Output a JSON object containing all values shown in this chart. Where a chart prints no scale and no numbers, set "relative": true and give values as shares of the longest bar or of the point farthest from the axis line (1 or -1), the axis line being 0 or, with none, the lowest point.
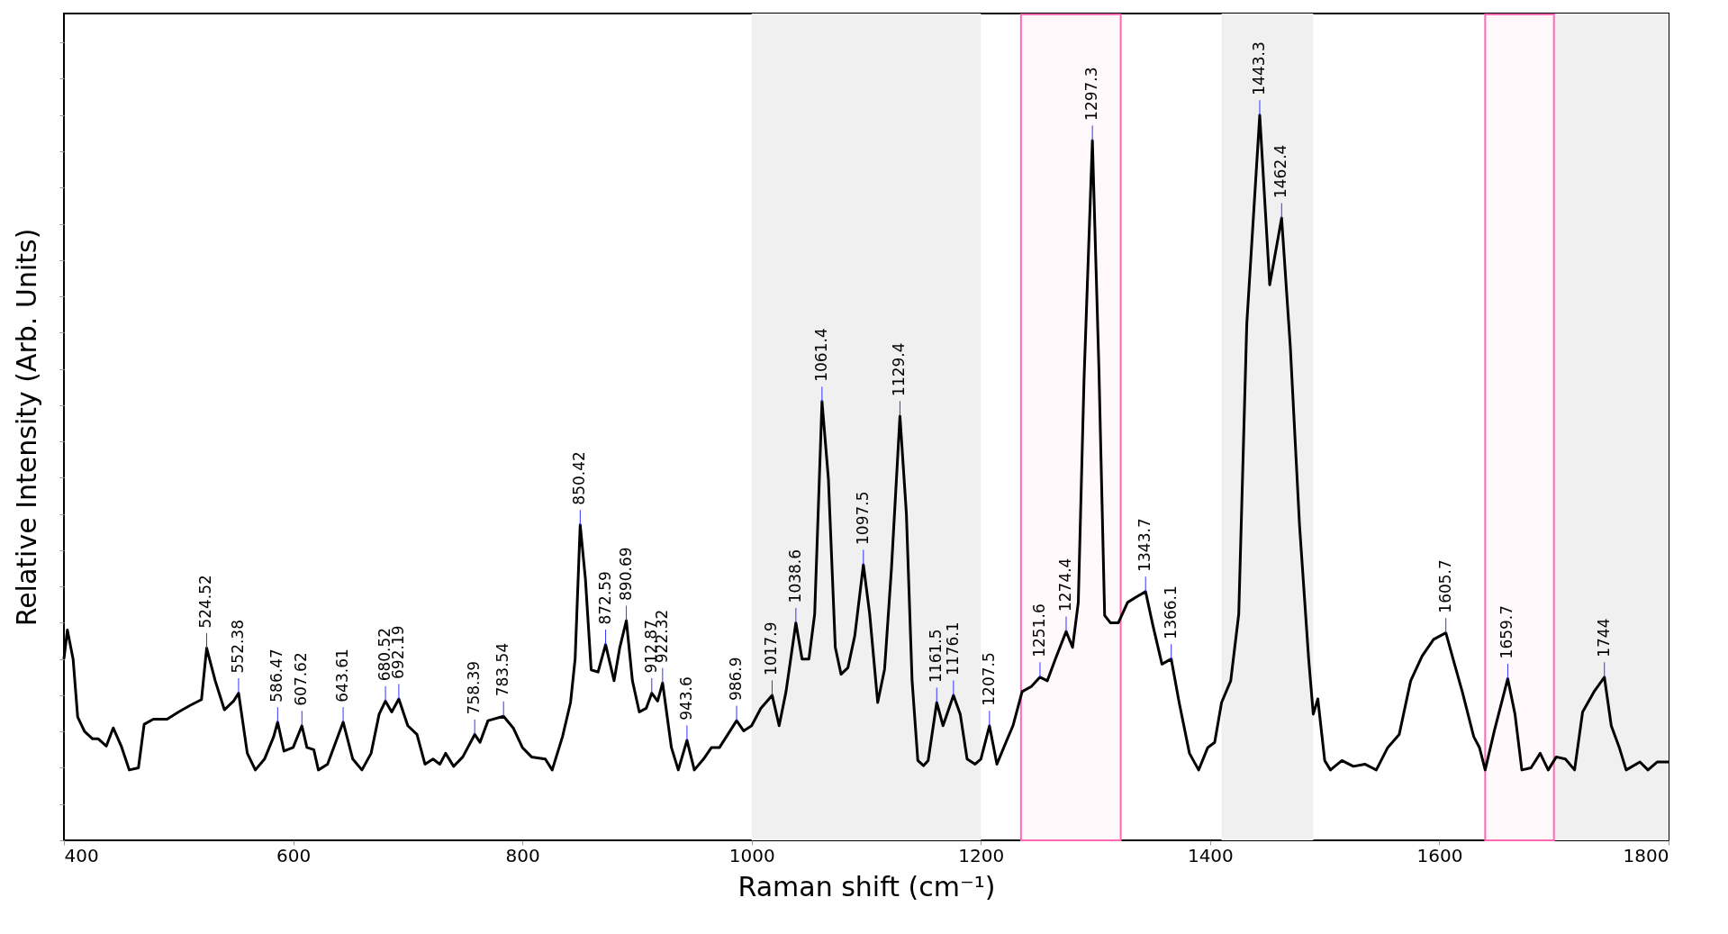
{
  "chart_data": {
    "type": "line",
    "relative": true,
    "xlabel": "Raman shift (cm⁻¹)",
    "ylabel": "Relative Intensity (Arb. Units)",
    "xlim": [
      400,
      1800
    ],
    "xticks": [
      400,
      600,
      800,
      1000,
      1200,
      1400,
      1600,
      1800
    ],
    "grid": false,
    "marker": "none",
    "line_style": "solid",
    "series": [
      {
        "color": "#000000",
        "x": [
          400,
          403,
          408,
          412,
          418,
          425,
          430,
          437,
          443,
          450,
          457,
          465,
          470,
          478,
          490,
          500,
          510,
          520,
          524.52,
          532,
          540,
          548,
          552.38,
          560,
          567,
          575,
          583,
          586.47,
          592,
          600,
          607.62,
          612,
          618,
          622,
          630,
          643.61,
          652,
          660,
          668,
          675,
          680.52,
          686,
          692.19,
          700,
          708,
          715,
          722,
          728,
          733,
          740,
          748,
          758.39,
          763,
          770,
          783.54,
          792,
          800,
          808,
          820,
          826,
          835,
          842,
          846,
          850.42,
          855,
          860,
          866,
          872.59,
          880,
          885,
          890.69,
          896,
          902,
          908,
          912.87,
          918,
          922.32,
          930,
          936,
          943.6,
          950,
          958,
          965,
          972,
          978,
          986.9,
          993,
          1000,
          1008,
          1017.9,
          1024,
          1030,
          1038.6,
          1044,
          1050,
          1055,
          1061.4,
          1067,
          1073,
          1078,
          1084,
          1090,
          1097.5,
          1103,
          1110,
          1116,
          1122,
          1129.4,
          1135,
          1140,
          1145,
          1150,
          1154,
          1161.5,
          1167,
          1176.1,
          1182,
          1188,
          1195,
          1200,
          1207.5,
          1214,
          1220,
          1228,
          1236,
          1244,
          1251.6,
          1258,
          1265,
          1274.4,
          1280,
          1285,
          1290,
          1297.3,
          1303,
          1308,
          1313,
          1320,
          1328,
          1335,
          1343.7,
          1350,
          1358,
          1366.1,
          1373,
          1382,
          1390,
          1398,
          1404,
          1410,
          1418,
          1425,
          1432,
          1443.3,
          1452,
          1462.4,
          1470,
          1478,
          1486,
          1490,
          1494,
          1500,
          1505,
          1515,
          1525,
          1535,
          1545,
          1555,
          1565,
          1575,
          1585,
          1595,
          1605.7,
          1612,
          1620,
          1630,
          1635,
          1640,
          1648,
          1659.7,
          1666,
          1672,
          1680,
          1688,
          1695,
          1702,
          1710,
          1718,
          1725,
          1735,
          1744,
          1750,
          1757,
          1763,
          1775,
          1782,
          1790,
          1800
        ],
        "values": [
          0.25,
          0.29,
          0.25,
          0.17,
          0.15,
          0.14,
          0.14,
          0.13,
          0.155,
          0.13,
          0.097,
          0.1,
          0.16,
          0.167,
          0.167,
          0.177,
          0.186,
          0.194,
          0.265,
          0.22,
          0.18,
          0.192,
          0.203,
          0.12,
          0.097,
          0.112,
          0.143,
          0.163,
          0.123,
          0.128,
          0.158,
          0.128,
          0.125,
          0.097,
          0.105,
          0.163,
          0.112,
          0.097,
          0.12,
          0.174,
          0.192,
          0.177,
          0.195,
          0.158,
          0.146,
          0.105,
          0.112,
          0.105,
          0.12,
          0.102,
          0.115,
          0.146,
          0.135,
          0.165,
          0.171,
          0.155,
          0.128,
          0.115,
          0.112,
          0.097,
          0.143,
          0.19,
          0.25,
          0.435,
          0.36,
          0.235,
          0.232,
          0.27,
          0.22,
          0.266,
          0.303,
          0.22,
          0.177,
          0.182,
          0.203,
          0.192,
          0.217,
          0.128,
          0.097,
          0.138,
          0.097,
          0.112,
          0.128,
          0.128,
          0.143,
          0.165,
          0.151,
          0.158,
          0.182,
          0.2,
          0.158,
          0.205,
          0.3,
          0.25,
          0.25,
          0.312,
          0.605,
          0.498,
          0.266,
          0.229,
          0.238,
          0.282,
          0.38,
          0.312,
          0.19,
          0.236,
          0.375,
          0.585,
          0.451,
          0.22,
          0.11,
          0.103,
          0.11,
          0.19,
          0.158,
          0.2,
          0.174,
          0.112,
          0.105,
          0.112,
          0.158,
          0.105,
          0.128,
          0.158,
          0.205,
          0.212,
          0.225,
          0.22,
          0.25,
          0.288,
          0.266,
          0.328,
          0.635,
          0.965,
          0.65,
          0.31,
          0.3,
          0.3,
          0.328,
          0.335,
          0.343,
          0.297,
          0.243,
          0.25,
          0.19,
          0.12,
          0.097,
          0.128,
          0.135,
          0.19,
          0.22,
          0.312,
          0.712,
          1.0,
          0.766,
          0.858,
          0.68,
          0.435,
          0.25,
          0.174,
          0.195,
          0.11,
          0.097,
          0.11,
          0.102,
          0.105,
          0.097,
          0.128,
          0.146,
          0.22,
          0.254,
          0.277,
          0.286,
          0.25,
          0.205,
          0.143,
          0.128,
          0.097,
          0.151,
          0.223,
          0.174,
          0.097,
          0.1,
          0.12,
          0.097,
          0.115,
          0.112,
          0.097,
          0.177,
          0.205,
          0.225,
          0.158,
          0.128,
          0.097,
          0.108,
          0.097,
          0.108,
          0.108
        ]
      }
    ],
    "bands": [
      {
        "axis": "x",
        "from": 1000,
        "to": 1200,
        "color": "#f0f0f0"
      },
      {
        "axis": "x",
        "from": 1410,
        "to": 1490,
        "color": "#f0f0f0"
      },
      {
        "axis": "x",
        "from": 1700,
        "to": 1800,
        "color": "#f0f0f0"
      },
      {
        "axis": "x",
        "from": 1235,
        "to": 1322,
        "color": "#ff69b4"
      },
      {
        "axis": "x",
        "from": 1640,
        "to": 1700,
        "color": "#ff69b4"
      }
    ],
    "annotations": [
      {
        "text": "524.52",
        "x": 524.52,
        "y": 0.265
      },
      {
        "text": "552.38",
        "x": 552.38,
        "y": 0.203
      },
      {
        "text": "586.47",
        "x": 586.47,
        "y": 0.163
      },
      {
        "text": "607.62",
        "x": 607.62,
        "y": 0.158
      },
      {
        "text": "643.61",
        "x": 643.61,
        "y": 0.163
      },
      {
        "text": "680.52",
        "x": 680.52,
        "y": 0.192
      },
      {
        "text": "692.19",
        "x": 692.19,
        "y": 0.195
      },
      {
        "text": "758.39",
        "x": 758.39,
        "y": 0.146
      },
      {
        "text": "783.54",
        "x": 783.54,
        "y": 0.171
      },
      {
        "text": "850.42",
        "x": 850.42,
        "y": 0.435
      },
      {
        "text": "872.59",
        "x": 872.59,
        "y": 0.27
      },
      {
        "text": "890.69",
        "x": 890.69,
        "y": 0.303
      },
      {
        "text": "912.87",
        "x": 912.87,
        "y": 0.203
      },
      {
        "text": "922.32",
        "x": 922.32,
        "y": 0.217
      },
      {
        "text": "943.6",
        "x": 943.6,
        "y": 0.138
      },
      {
        "text": "986.9",
        "x": 986.9,
        "y": 0.165
      },
      {
        "text": "1017.9",
        "x": 1017.9,
        "y": 0.2
      },
      {
        "text": "1038.6",
        "x": 1038.6,
        "y": 0.3
      },
      {
        "text": "1061.4",
        "x": 1061.4,
        "y": 0.605
      },
      {
        "text": "1097.5",
        "x": 1097.5,
        "y": 0.38
      },
      {
        "text": "1129.4",
        "x": 1129.4,
        "y": 0.585
      },
      {
        "text": "1161.5",
        "x": 1161.5,
        "y": 0.19
      },
      {
        "text": "1176.1",
        "x": 1176.1,
        "y": 0.2
      },
      {
        "text": "1207.5",
        "x": 1207.5,
        "y": 0.158
      },
      {
        "text": "1251.6",
        "x": 1251.6,
        "y": 0.225
      },
      {
        "text": "1274.4",
        "x": 1274.4,
        "y": 0.288
      },
      {
        "text": "1297.3",
        "x": 1297.3,
        "y": 0.965
      },
      {
        "text": "1343.7",
        "x": 1343.7,
        "y": 0.343
      },
      {
        "text": "1366.1",
        "x": 1366.1,
        "y": 0.25
      },
      {
        "text": "1443.3",
        "x": 1443.3,
        "y": 1.0
      },
      {
        "text": "1462.4",
        "x": 1462.4,
        "y": 0.858
      },
      {
        "text": "1605.7",
        "x": 1605.7,
        "y": 0.286
      },
      {
        "text": "1659.7",
        "x": 1659.7,
        "y": 0.223
      },
      {
        "text": "1744",
        "x": 1744,
        "y": 0.225
      }
    ]
  }
}
